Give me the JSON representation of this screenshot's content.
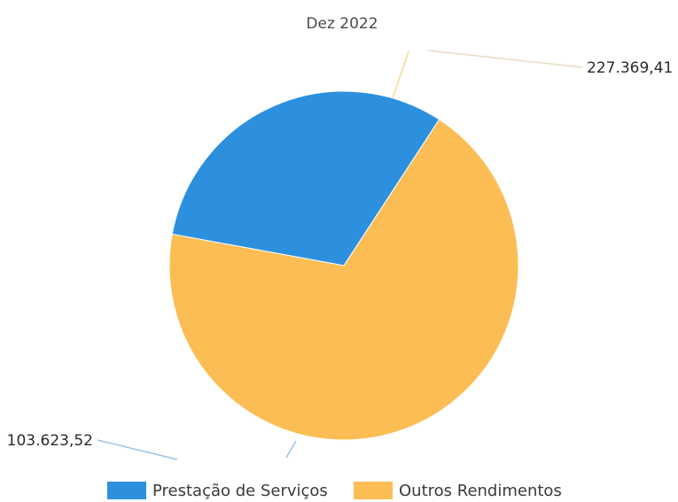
{
  "chart_data": {
    "type": "pie",
    "title": "Dez 2022",
    "series": [
      {
        "name": "Prestação de Serviços",
        "value": 103623.52,
        "label": "103.623,52",
        "color": "#2d90de"
      },
      {
        "name": "Outros Rendimentos",
        "value": 227369.41,
        "label": "227.369,41",
        "color": "#fbbd54"
      }
    ],
    "legend_position": "bottom"
  }
}
